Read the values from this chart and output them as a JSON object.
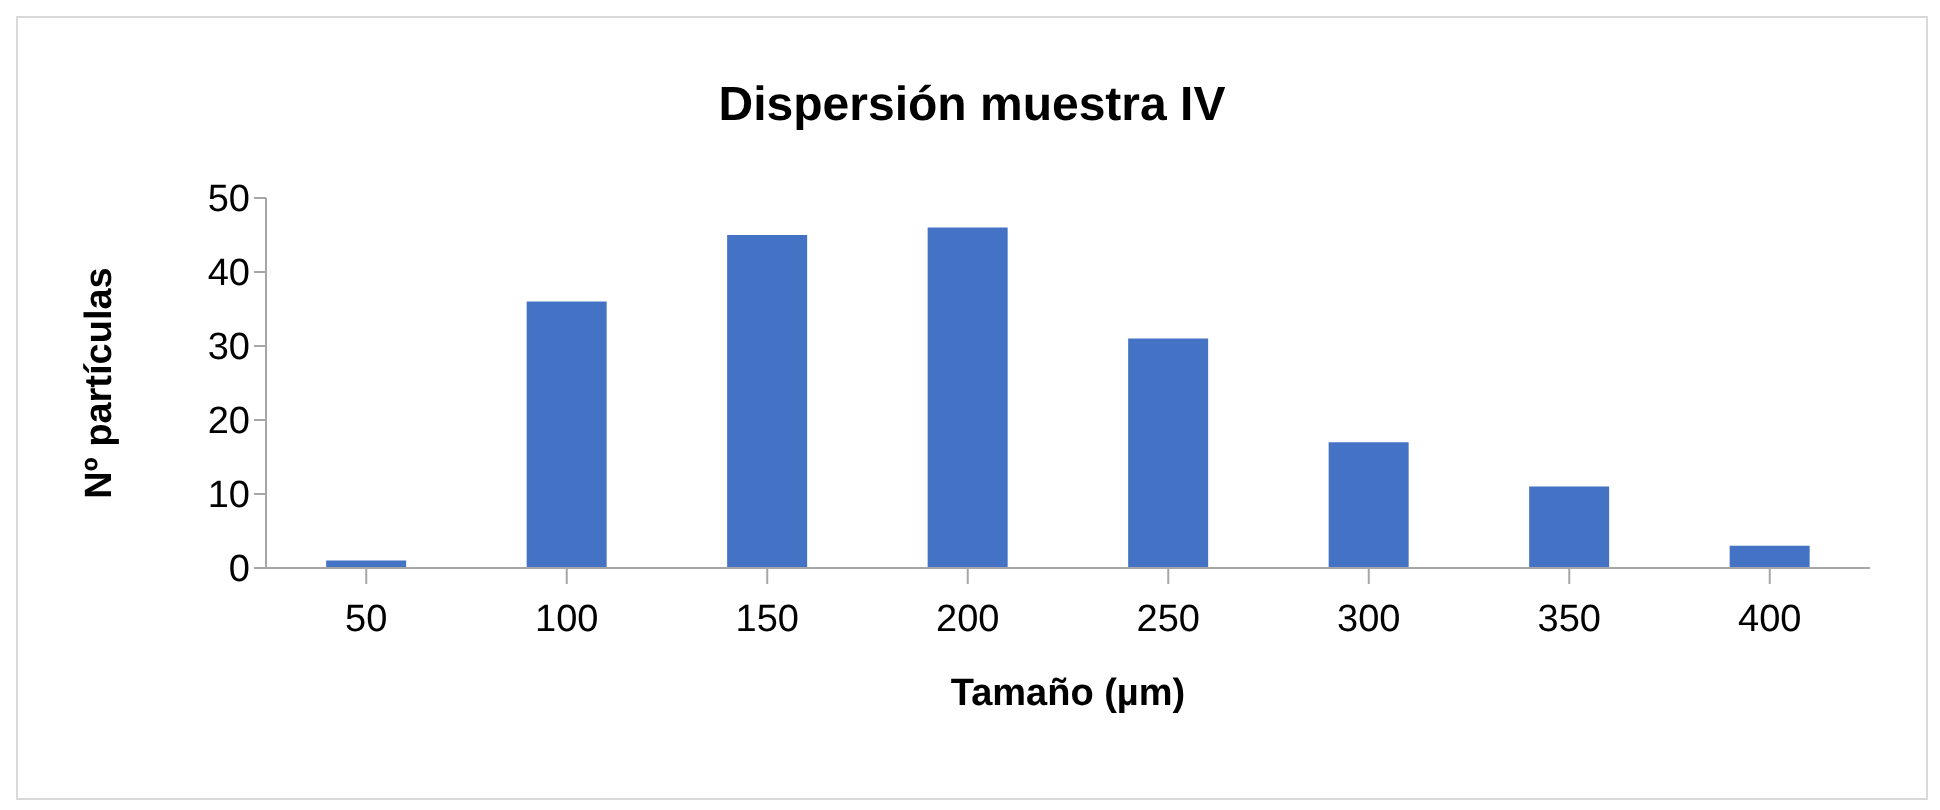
{
  "chart_data": {
    "type": "bar",
    "title": "Dispersión muestra IV",
    "xlabel": "Tamaño (µm)",
    "ylabel": "Nº partículas",
    "categories": [
      "50",
      "100",
      "150",
      "200",
      "250",
      "300",
      "350",
      "400"
    ],
    "values": [
      1,
      36,
      45,
      46,
      31,
      17,
      11,
      3
    ],
    "color": "#4472c4",
    "ylim": [
      0,
      50
    ],
    "yticks": [
      0,
      10,
      20,
      30,
      40,
      50
    ],
    "grid": false,
    "legend": false
  }
}
